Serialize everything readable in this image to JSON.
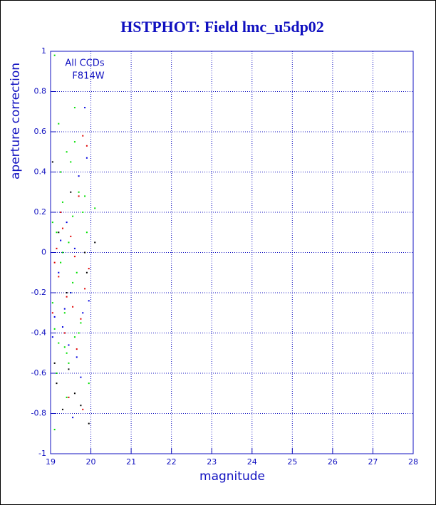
{
  "chart_data": {
    "type": "scatter",
    "title": "HSTPHOT: Field lmc_u5dp02",
    "xlabel": "magnitude",
    "ylabel": "aperture correction",
    "annotations": [
      "All CCDs",
      "F814W"
    ],
    "xlim": [
      19,
      28
    ],
    "ylim": [
      -1,
      1
    ],
    "xticks": [
      19,
      20,
      21,
      22,
      23,
      24,
      25,
      26,
      27,
      28
    ],
    "yticks": [
      -1,
      -0.8,
      -0.6,
      -0.4,
      -0.2,
      0,
      0.2,
      0.4,
      0.6,
      0.8,
      1
    ],
    "grid": true,
    "series": [
      {
        "color": "#00e000",
        "x": [
          19.1,
          19.2,
          19.4,
          19.5,
          19.6,
          19.3,
          19.05,
          19.15,
          19.7,
          19.8,
          19.45,
          19.25,
          19.55,
          19.35,
          19.9,
          19.1,
          19.6,
          19.2,
          19.4,
          19.75,
          19.05,
          19.3,
          19.5,
          19.65,
          19.85,
          19.15,
          19.45,
          19.95,
          20.1,
          19.25,
          19.55,
          19.35,
          19.7,
          19.1,
          19.4,
          19.6
        ],
        "y": [
          0.98,
          0.64,
          0.5,
          0.45,
          0.72,
          0.25,
          0.15,
          0.1,
          0.3,
          0.2,
          0.05,
          -0.05,
          -0.15,
          -0.3,
          0.1,
          -0.38,
          -0.42,
          -0.45,
          -0.5,
          -0.35,
          -0.25,
          0.0,
          -0.2,
          -0.1,
          0.28,
          -0.6,
          -0.55,
          -0.65,
          0.22,
          0.4,
          0.18,
          -0.47,
          -0.4,
          -0.88,
          -0.72,
          0.55
        ]
      },
      {
        "color": "#e00000",
        "x": [
          19.8,
          19.9,
          19.7,
          19.3,
          19.5,
          19.1,
          19.6,
          19.2,
          19.4,
          19.85,
          19.05,
          19.55,
          19.75,
          19.35,
          19.65,
          19.25,
          19.95,
          19.45,
          19.15,
          19.8
        ],
        "y": [
          0.58,
          0.53,
          0.28,
          0.12,
          0.08,
          -0.05,
          -0.02,
          -0.12,
          -0.22,
          -0.18,
          -0.3,
          -0.27,
          -0.33,
          -0.4,
          -0.48,
          0.2,
          -0.08,
          -0.72,
          0.02,
          -0.78
        ]
      },
      {
        "color": "#0000e0",
        "x": [
          19.85,
          19.9,
          19.7,
          19.4,
          19.6,
          19.2,
          19.1,
          19.5,
          19.3,
          19.8,
          19.05,
          19.65,
          19.45,
          19.95,
          19.25,
          19.75,
          19.55,
          19.35
        ],
        "y": [
          0.72,
          0.47,
          0.38,
          0.15,
          0.02,
          -0.1,
          -0.32,
          -0.2,
          -0.37,
          -0.3,
          -0.42,
          -0.52,
          -0.46,
          -0.24,
          0.06,
          -0.62,
          -0.82,
          -0.28
        ]
      },
      {
        "color": "#000000",
        "x": [
          19.05,
          19.2,
          19.4,
          20.1,
          19.9,
          19.6,
          19.1,
          19.3,
          19.75,
          19.5,
          19.95,
          19.15,
          19.85,
          19.45
        ],
        "y": [
          0.45,
          0.1,
          -0.2,
          0.05,
          -0.1,
          -0.7,
          -0.55,
          -0.78,
          -0.76,
          0.3,
          -0.85,
          -0.65,
          0.0,
          -0.58
        ]
      }
    ]
  }
}
